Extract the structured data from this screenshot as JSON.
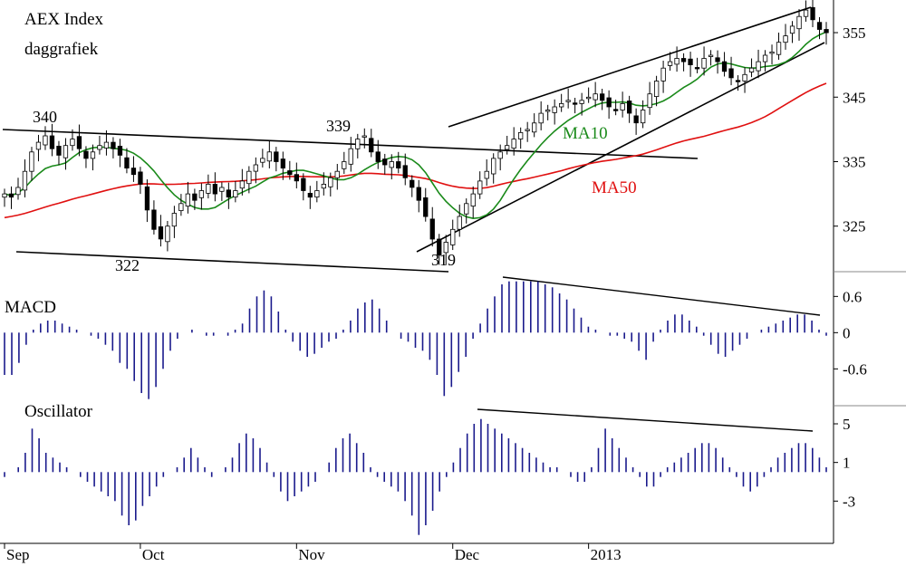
{
  "chart_data": [
    {
      "panel": "price",
      "type": "candlestick",
      "title": "AEX Index",
      "subtitle": "daggrafiek",
      "y_ticks": [
        325,
        335,
        345,
        355
      ],
      "ylim": [
        318.5,
        359.5
      ],
      "x_labels": [
        "Sep",
        "Oct",
        "Nov",
        "Dec",
        "2013"
      ],
      "candles_close": [
        330.0,
        329.5,
        331.0,
        333.5,
        336.5,
        338.0,
        339.0,
        337.0,
        336.0,
        337.5,
        338.5,
        337.0,
        335.5,
        336.5,
        337.5,
        338.0,
        337.0,
        336.0,
        334.0,
        333.0,
        331.5,
        327.5,
        324.5,
        323.0,
        325.0,
        327.0,
        328.5,
        330.0,
        329.0,
        330.5,
        331.5,
        330.0,
        331.0,
        329.5,
        330.5,
        332.0,
        333.5,
        334.5,
        335.5,
        336.5,
        335.0,
        334.0,
        333.0,
        332.0,
        330.5,
        329.5,
        330.5,
        331.5,
        332.5,
        333.5,
        335.0,
        337.0,
        338.5,
        339.0,
        336.5,
        335.0,
        334.5,
        335.0,
        334.0,
        332.5,
        331.0,
        329.0,
        326.5,
        323.0,
        320.5,
        322.5,
        324.5,
        326.5,
        328.5,
        330.0,
        332.0,
        333.5,
        335.5,
        336.5,
        337.5,
        338.5,
        339.5,
        340.0,
        341.0,
        342.5,
        343.0,
        343.5,
        344.0,
        344.5,
        344.0,
        344.5,
        345.0,
        345.5,
        344.5,
        343.5,
        343.0,
        344.0,
        342.5,
        341.0,
        343.0,
        345.5,
        347.5,
        349.5,
        350.5,
        351.0,
        350.5,
        350.0,
        349.5,
        351.0,
        351.5,
        350.5,
        349.0,
        348.0,
        347.5,
        348.5,
        349.5,
        350.5,
        351.5,
        352.0,
        353.5,
        354.5,
        356.0,
        357.5,
        358.5,
        357.0,
        355.5,
        355.0
      ],
      "annotations": [
        {
          "label": "340",
          "value": 340
        },
        {
          "label": "339",
          "value": 339
        },
        {
          "label": "322",
          "value": 322
        },
        {
          "label": "319",
          "value": 319
        },
        {
          "label": "MA10",
          "color": "#1a8a1a"
        },
        {
          "label": "MA50",
          "color": "#e01010"
        }
      ],
      "series": [
        {
          "name": "MA10",
          "color": "#1a8a1a"
        },
        {
          "name": "MA50",
          "color": "#e01010"
        }
      ],
      "trendlines": "channel lines drawn in black"
    },
    {
      "panel": "macd",
      "type": "bar",
      "title": "MACD",
      "y_ticks": [
        "0.6",
        "0",
        "-0.6"
      ],
      "ylim": [
        -1.15,
        0.95
      ],
      "color": "#1a1a8c",
      "values": [
        -0.7,
        -0.7,
        -0.5,
        -0.2,
        0.05,
        0.15,
        0.2,
        0.2,
        0.15,
        0.1,
        0.05,
        0.0,
        -0.05,
        -0.1,
        -0.2,
        -0.3,
        -0.5,
        -0.6,
        -0.8,
        -1.0,
        -1.1,
        -0.9,
        -0.6,
        -0.3,
        -0.1,
        0.0,
        0.05,
        0.0,
        -0.05,
        -0.05,
        0.0,
        -0.05,
        0.05,
        0.15,
        0.4,
        0.6,
        0.7,
        0.6,
        0.35,
        0.05,
        -0.15,
        -0.3,
        -0.4,
        -0.35,
        -0.25,
        -0.15,
        -0.1,
        0.05,
        0.2,
        0.4,
        0.5,
        0.55,
        0.4,
        0.2,
        0.0,
        -0.1,
        -0.15,
        -0.25,
        -0.3,
        -0.45,
        -0.7,
        -1.05,
        -0.9,
        -0.65,
        -0.4,
        -0.1,
        0.15,
        0.4,
        0.6,
        0.8,
        0.85,
        0.85,
        0.85,
        0.85,
        0.85,
        0.8,
        0.75,
        0.65,
        0.55,
        0.4,
        0.25,
        0.1,
        0.05,
        0.0,
        -0.05,
        -0.05,
        -0.1,
        -0.15,
        -0.3,
        -0.45,
        -0.15,
        0.05,
        0.2,
        0.3,
        0.3,
        0.2,
        0.1,
        -0.05,
        -0.2,
        -0.35,
        -0.4,
        -0.3,
        -0.2,
        -0.1,
        0.0,
        0.05,
        0.1,
        0.15,
        0.2,
        0.25,
        0.3,
        0.3,
        0.2,
        0.05,
        -0.05
      ],
      "trendline": "descending line over the December peaks"
    },
    {
      "panel": "oscillator",
      "type": "bar",
      "title": "Oscillator",
      "y_ticks": [
        "5",
        "1",
        "-3"
      ],
      "ylim": [
        -7,
        6.5
      ],
      "color": "#1a1a8c",
      "values": [
        -0.5,
        0.0,
        0.5,
        2.0,
        4.5,
        3.5,
        2.0,
        1.5,
        1.0,
        0.5,
        0.0,
        -0.5,
        -1.0,
        -1.5,
        -2.0,
        -2.5,
        -3.0,
        -4.5,
        -5.5,
        -5.0,
        -3.5,
        -2.5,
        -1.5,
        -0.5,
        0.0,
        0.5,
        1.5,
        2.5,
        1.5,
        0.5,
        -0.5,
        0.0,
        0.5,
        1.5,
        3.0,
        4.0,
        3.5,
        2.5,
        1.0,
        -0.5,
        -2.0,
        -3.0,
        -2.5,
        -2.0,
        -1.5,
        -1.0,
        0.0,
        1.0,
        2.5,
        3.5,
        4.0,
        3.0,
        2.0,
        0.5,
        -0.5,
        -1.0,
        -1.5,
        -2.0,
        -3.0,
        -4.5,
        -6.5,
        -5.5,
        -4.0,
        -2.0,
        -0.5,
        1.0,
        2.5,
        4.0,
        5.0,
        5.5,
        5.0,
        4.5,
        4.0,
        3.5,
        3.0,
        2.5,
        2.0,
        1.5,
        1.0,
        0.5,
        0.5,
        0.0,
        -0.5,
        -1.0,
        -1.0,
        0.5,
        2.5,
        4.5,
        3.5,
        2.5,
        1.5,
        0.5,
        -0.5,
        -1.5,
        -1.5,
        -0.5,
        0.5,
        1.0,
        1.5,
        2.0,
        2.5,
        3.0,
        3.0,
        2.5,
        1.5,
        0.5,
        -0.5,
        -1.5,
        -2.0,
        -1.5,
        -0.5,
        0.5,
        1.5,
        2.0,
        2.5,
        3.0,
        3.0,
        2.5,
        1.5,
        0.5
      ],
      "trendline": "descending line over the December peaks"
    }
  ]
}
